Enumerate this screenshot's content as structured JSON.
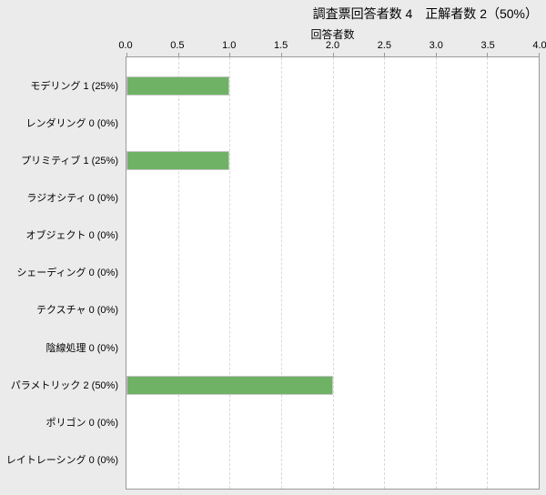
{
  "title": "調査票回答者数 4　正解者数 2（50%）",
  "chart_data": {
    "type": "bar",
    "orientation": "horizontal",
    "title": "調査票回答者数 4　正解者数 2（50%）",
    "xlabel": "回答者数",
    "ylabel": "",
    "categories": [
      "モデリング 1 (25%)",
      "レンダリング 0 (0%)",
      "プリミティブ 1 (25%)",
      "ラジオシティ 0 (0%)",
      "オブジェクト 0 (0%)",
      "シェーディング 0 (0%)",
      "テクスチャ 0 (0%)",
      "陰線処理 0 (0%)",
      "パラメトリック 2 (50%)",
      "ポリゴン 0 (0%)",
      "レイトレーシング 0 (0%)"
    ],
    "values": [
      1,
      0,
      1,
      0,
      0,
      0,
      0,
      0,
      2,
      0,
      0
    ],
    "x_ticks": [
      "0.0",
      "0.5",
      "1.0",
      "1.5",
      "2.0",
      "2.5",
      "3.0",
      "3.5",
      "4.0"
    ],
    "xlim": [
      0,
      4
    ],
    "grid": "vertical-dashed-every-0.5",
    "legend": "none",
    "colors": {
      "page_bg": "#ebebeb",
      "plot_bg": "#ffffff",
      "plot_border": "#9a9a9a",
      "gridline": "#d9d9d9",
      "bar_fill": "#6fb266",
      "bar_border": "#c6c6c6",
      "text": "#000000"
    }
  }
}
